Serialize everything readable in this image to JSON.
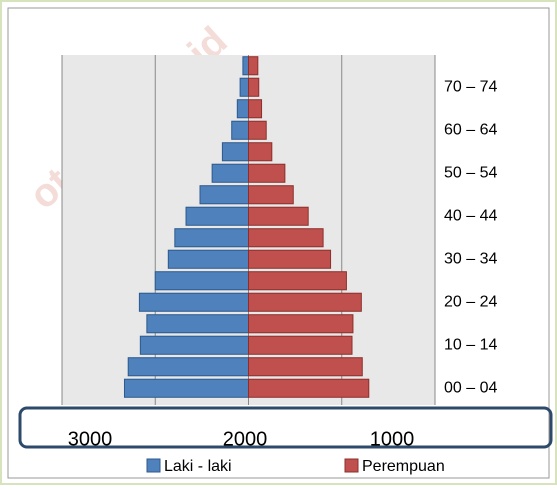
{
  "chart_data": {
    "type": "pyramid",
    "watermark": "ota.bps.go.id",
    "categories": [
      "00 – 04",
      null,
      "10 – 14",
      null,
      "20 – 24",
      null,
      "30 – 34",
      null,
      "40 – 44",
      null,
      "50 – 54",
      null,
      "60 – 64",
      null,
      "70 – 74",
      null
    ],
    "series": [
      {
        "name": "Laki - laki",
        "color": "#4f81bd",
        "side": "left",
        "values": [
          1330,
          1290,
          1160,
          1090,
          1170,
          1000,
          860,
          790,
          670,
          520,
          390,
          280,
          180,
          120,
          90,
          60
        ]
      },
      {
        "name": "Perempuan",
        "color": "#c0504d",
        "side": "right",
        "values": [
          1290,
          1220,
          1110,
          1120,
          1210,
          1050,
          880,
          800,
          640,
          480,
          390,
          250,
          190,
          140,
          110,
          100
        ]
      }
    ],
    "xlim": [
      -2000,
      2000
    ],
    "xticks": [
      -2000,
      -1000,
      0,
      1000,
      2000
    ],
    "axis_labels": [
      "3000",
      "2000",
      "1000"
    ],
    "grid": true
  }
}
